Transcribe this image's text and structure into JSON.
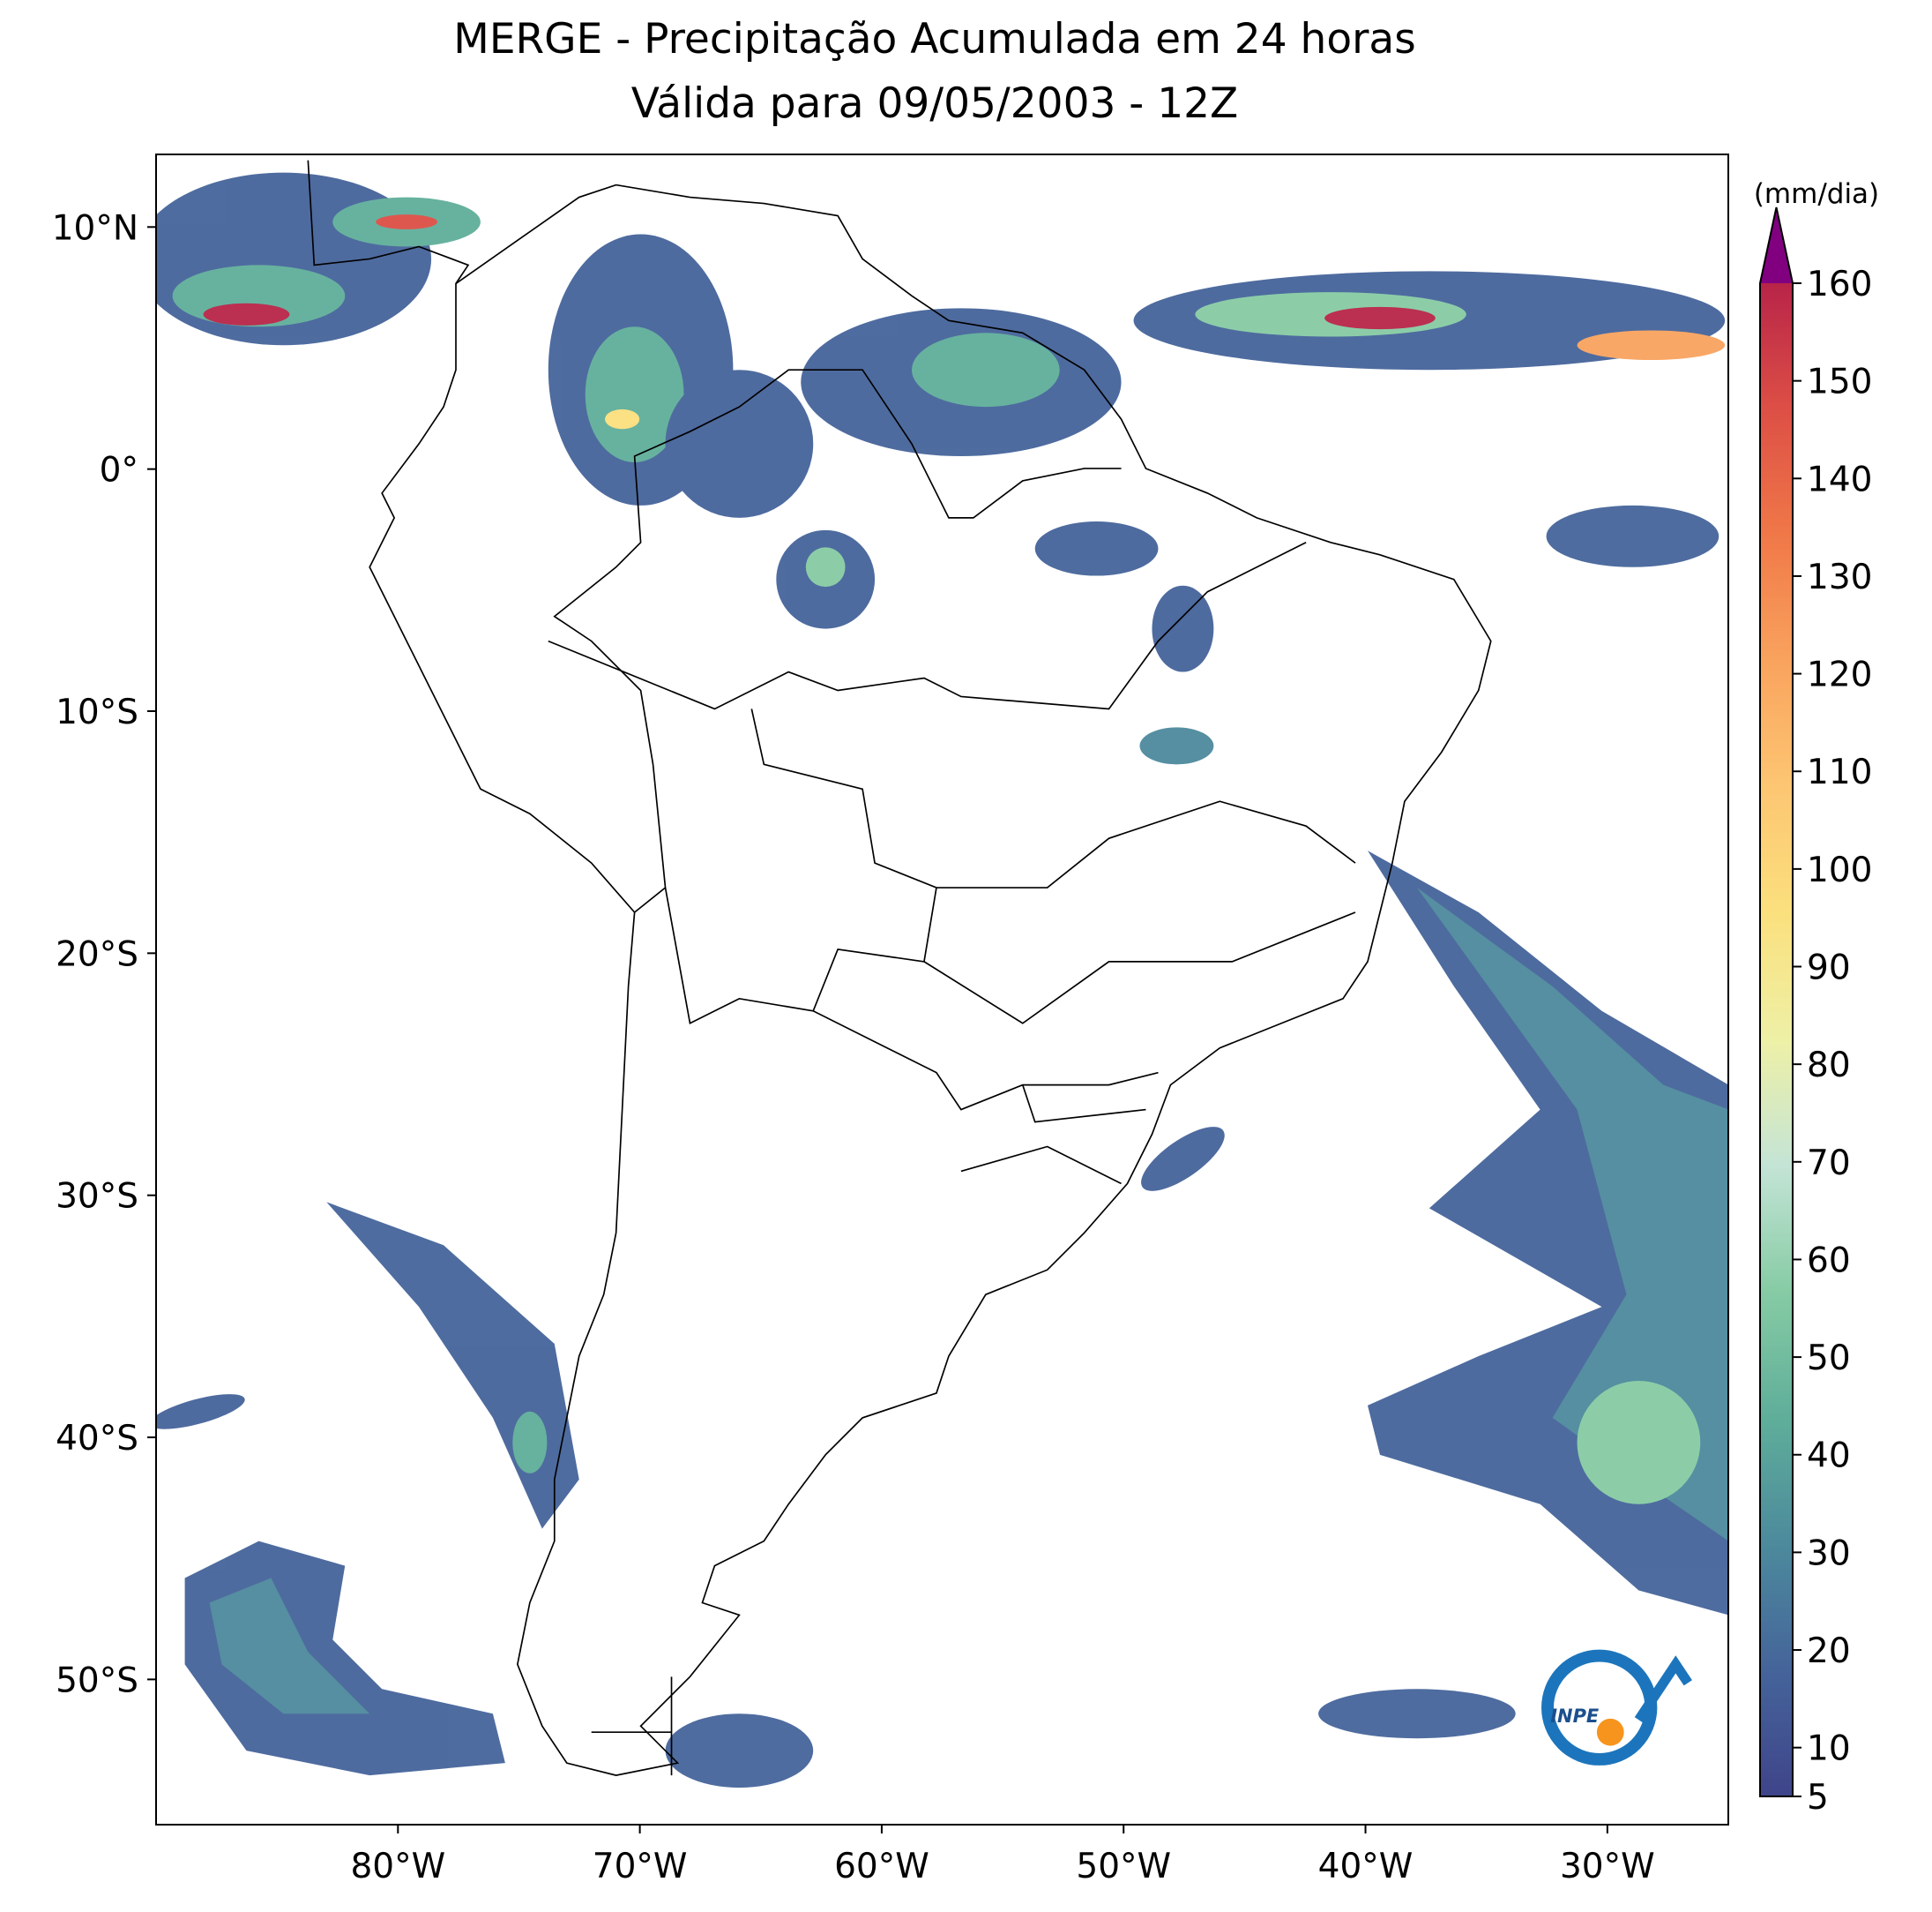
{
  "map": {
    "title": "MERGE - Precipitação Acumulada em 24 horas",
    "subtitle": "Válida para 09/05/2003 - 12Z",
    "lonlim": [
      -90,
      -25
    ],
    "latlim": [
      -56,
      13
    ],
    "lonticks": [
      {
        "value": -80,
        "label": "80°W"
      },
      {
        "value": -70,
        "label": "70°W"
      },
      {
        "value": -60,
        "label": "60°W"
      },
      {
        "value": -50,
        "label": "50°W"
      },
      {
        "value": -40,
        "label": "40°W"
      },
      {
        "value": -30,
        "label": "30°W"
      }
    ],
    "latticks": [
      {
        "value": 10,
        "label": "10°N"
      },
      {
        "value": 0,
        "label": "0°"
      },
      {
        "value": -10,
        "label": "10°S"
      },
      {
        "value": -20,
        "label": "20°S"
      },
      {
        "value": -30,
        "label": "30°S"
      },
      {
        "value": -40,
        "label": "40°S"
      },
      {
        "value": -50,
        "label": "50°S"
      }
    ],
    "colorbar": {
      "label": "(mm/dia)",
      "lim": [
        5,
        160
      ],
      "ticks": [
        5,
        10,
        20,
        30,
        40,
        50,
        60,
        70,
        80,
        90,
        100,
        110,
        120,
        130,
        140,
        150,
        160
      ],
      "colors": [
        "#3f448a",
        "#45649a",
        "#4c8a9c",
        "#5fae9a",
        "#86cba4",
        "#c4e4d6",
        "#eef0a6",
        "#fbe07e",
        "#fdc672",
        "#f9a35e",
        "#f07848",
        "#dd4f46",
        "#b82448"
      ],
      "over_color": "#800080"
    },
    "logo": "INPE"
  }
}
